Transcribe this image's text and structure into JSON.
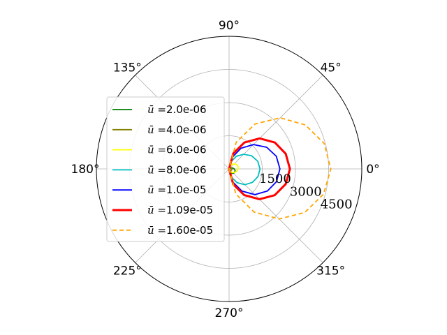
{
  "chart_data": {
    "type": "line",
    "projection": "polar",
    "title": "",
    "theta_unit": "degrees",
    "theta_tick_labels": [
      "0°",
      "45°",
      "90°",
      "135°",
      "180°",
      "225°",
      "270°",
      "315°"
    ],
    "r_tick_labels": [
      "1500",
      "3000",
      "4500"
    ],
    "r_ticks": [
      1500,
      3000,
      4500
    ],
    "rlim": [
      0,
      6000
    ],
    "grid": true,
    "legend_position": "left",
    "legend_prefix": "ū =",
    "theta_deg": [
      -90,
      -75,
      -60,
      -45,
      -30,
      -15,
      0,
      15,
      30,
      45,
      60,
      75,
      90
    ],
    "series": [
      {
        "name": "2.0e-06",
        "color": "#008000",
        "width": 1.8,
        "dash": "",
        "r": [
          0,
          130,
          230,
          280,
          300,
          280,
          230,
          165,
          100,
          40,
          0,
          0,
          0
        ]
      },
      {
        "name": "4.0e-06",
        "color": "#808000",
        "width": 1.8,
        "dash": "",
        "r": [
          0,
          30,
          60,
          90,
          115,
          130,
          130,
          115,
          90,
          60,
          30,
          0,
          0
        ]
      },
      {
        "name": "6.0e-06",
        "color": "#ffff00",
        "width": 1.8,
        "dash": "",
        "r": [
          0,
          80,
          165,
          240,
          310,
          370,
          410,
          420,
          390,
          320,
          220,
          110,
          0
        ]
      },
      {
        "name": "8.0e-06",
        "color": "#00bfbf",
        "width": 1.8,
        "dash": "",
        "r": [
          0,
          380,
          720,
          1010,
          1220,
          1350,
          1400,
          1340,
          1180,
          940,
          660,
          330,
          0
        ]
      },
      {
        "name": "1.0e-05",
        "color": "#0000ff",
        "width": 1.8,
        "dash": "",
        "r": [
          0,
          600,
          1160,
          1650,
          2000,
          2220,
          2300,
          2210,
          1960,
          1560,
          1080,
          540,
          0
        ]
      },
      {
        "name": "1.09e-05",
        "color": "#ff0000",
        "width": 3.0,
        "dash": "",
        "r": [
          0,
          720,
          1370,
          1940,
          2380,
          2650,
          2750,
          2650,
          2390,
          1950,
          1380,
          720,
          0
        ]
      },
      {
        "name": "1.60e-05",
        "color": "#ffa500",
        "width": 1.8,
        "dash": "6,4",
        "r": [
          0,
          1170,
          2250,
          3200,
          3950,
          4420,
          4600,
          4450,
          3980,
          3270,
          2350,
          1250,
          0
        ]
      }
    ]
  }
}
